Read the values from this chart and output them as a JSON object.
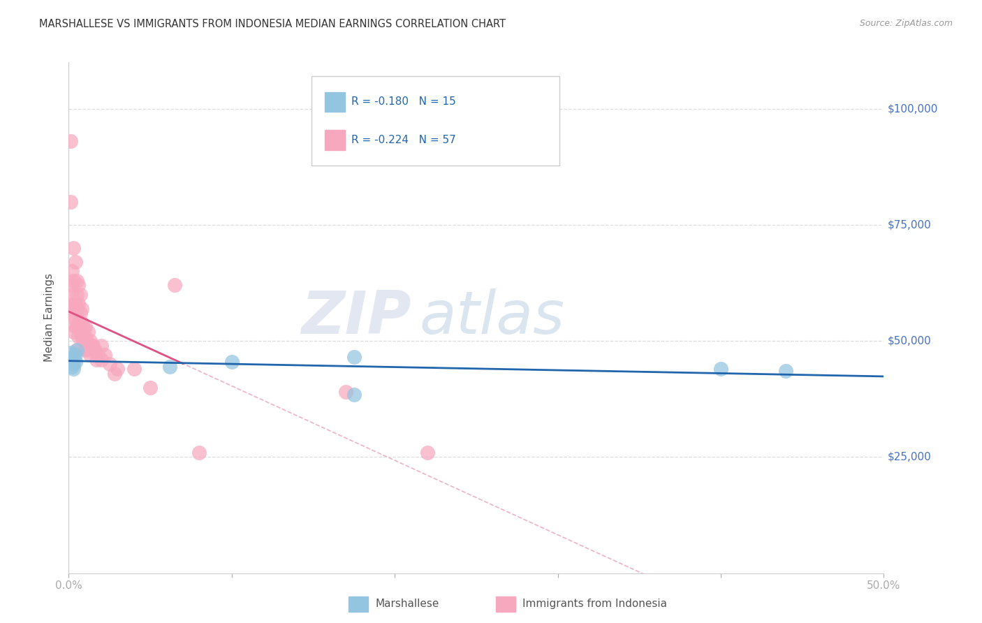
{
  "title": "MARSHALLESE VS IMMIGRANTS FROM INDONESIA MEDIAN EARNINGS CORRELATION CHART",
  "source": "Source: ZipAtlas.com",
  "ylabel": "Median Earnings",
  "ytick_labels": [
    "$25,000",
    "$50,000",
    "$75,000",
    "$100,000"
  ],
  "ytick_values": [
    25000,
    50000,
    75000,
    100000
  ],
  "ylim": [
    0,
    110000
  ],
  "xlim": [
    0.0,
    0.5
  ],
  "legend_label1": "Marshallese",
  "legend_label2": "Immigrants from Indonesia",
  "R1": "-0.180",
  "N1": "15",
  "R2": "-0.224",
  "N2": "57",
  "color_blue": "#93c4e0",
  "color_pink": "#f7a8bf",
  "color_blue_line": "#2166ac",
  "color_pink_line": "#e05080",
  "color_dashed": "#e8a0b8",
  "watermark_zip": "ZIP",
  "watermark_atlas": "atlas",
  "blue_points_x": [
    0.001,
    0.002,
    0.002,
    0.003,
    0.003,
    0.003,
    0.004,
    0.004,
    0.005,
    0.062,
    0.1,
    0.175,
    0.175,
    0.4,
    0.44
  ],
  "blue_points_y": [
    47500,
    46000,
    44500,
    46500,
    45000,
    44000,
    47000,
    45500,
    48000,
    44500,
    45500,
    46500,
    38500,
    44000,
    43500
  ],
  "pink_points_x": [
    0.001,
    0.001,
    0.002,
    0.002,
    0.002,
    0.002,
    0.003,
    0.003,
    0.003,
    0.003,
    0.003,
    0.004,
    0.004,
    0.004,
    0.004,
    0.005,
    0.005,
    0.005,
    0.005,
    0.006,
    0.006,
    0.006,
    0.006,
    0.007,
    0.007,
    0.007,
    0.008,
    0.008,
    0.008,
    0.009,
    0.009,
    0.01,
    0.01,
    0.01,
    0.011,
    0.012,
    0.012,
    0.013,
    0.013,
    0.014,
    0.015,
    0.016,
    0.017,
    0.018,
    0.02,
    0.02,
    0.022,
    0.025,
    0.028,
    0.03,
    0.04,
    0.05,
    0.065,
    0.08,
    0.17,
    0.22,
    0.005
  ],
  "pink_points_y": [
    93000,
    80000,
    65000,
    62000,
    60000,
    57000,
    70000,
    63000,
    58000,
    55000,
    52000,
    67000,
    58000,
    55000,
    53000,
    63000,
    60000,
    57000,
    53000,
    62000,
    58000,
    54000,
    51000,
    60000,
    56000,
    52000,
    57000,
    54000,
    51000,
    53000,
    50000,
    53000,
    51000,
    48000,
    50000,
    52000,
    48000,
    50000,
    47000,
    49000,
    49000,
    48000,
    46000,
    47000,
    49000,
    46000,
    47000,
    45000,
    43000,
    44000,
    44000,
    40000,
    62000,
    26000,
    39000,
    26000,
    48000
  ]
}
